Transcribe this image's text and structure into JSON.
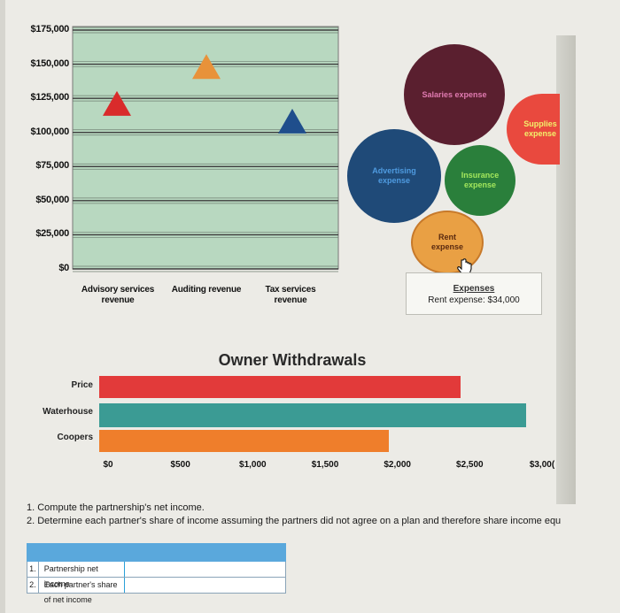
{
  "chart_data": [
    {
      "type": "scatter",
      "marker": "triangle",
      "y_tick_labels": [
        "$175,000",
        "$150,000",
        "$125,000",
        "$100,000",
        "$75,000",
        "$50,000",
        "$25,000",
        "$0"
      ],
      "ylim": [
        0,
        175000
      ],
      "categories": [
        "Advisory services revenue",
        "Auditing revenue",
        "Tax services revenue"
      ],
      "values": [
        120000,
        147000,
        107000
      ],
      "colors": [
        "#d92b2b",
        "#e8923a",
        "#1f4e8c"
      ],
      "grid": true,
      "background": "#b8d8c0"
    },
    {
      "type": "bubble",
      "items": [
        {
          "label": "Salaries expense",
          "color": "#5a1f2f"
        },
        {
          "label": "Supplies expense",
          "color": "#e9493e"
        },
        {
          "label": "Advertising expense",
          "color": "#1f4a78"
        },
        {
          "label": "Insurance expense",
          "color": "#2a7f3b"
        },
        {
          "label": "Rent expense",
          "color": "#e9a044"
        }
      ],
      "tooltip": {
        "title": "Expenses",
        "text": "Rent expense: $34,000"
      }
    },
    {
      "type": "bar",
      "orientation": "horizontal",
      "title": "Owner Withdrawals",
      "categories": [
        "Price",
        "Waterhouse",
        "Coopers"
      ],
      "values": [
        2500,
        2950,
        2000
      ],
      "colors": [
        "#e23a3a",
        "#3b9b94",
        "#ef7e2b"
      ],
      "x_tick_labels": [
        "$0",
        "$500",
        "$1,000",
        "$1,500",
        "$2,000",
        "$2,500",
        "$3,00("
      ],
      "xlim": [
        0,
        3000
      ]
    }
  ],
  "questions": [
    "1. Compute the partnership's net income.",
    "2. Determine each partner's share of income assuming the partners did not agree on a plan and therefore share income equ"
  ],
  "answer_table": {
    "rows": [
      {
        "num": "1.",
        "label": "Partnership net income",
        "value": ""
      },
      {
        "num": "2.",
        "label": "Each partner's share of net income",
        "value": ""
      }
    ]
  }
}
